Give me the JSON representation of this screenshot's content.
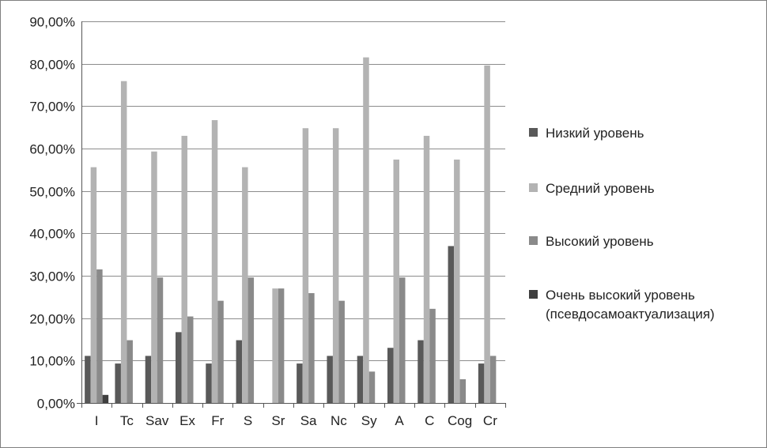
{
  "chart_data": {
    "type": "bar",
    "title": "",
    "xlabel": "",
    "ylabel": "",
    "ylim": [
      0,
      90
    ],
    "y_tick_step": 10,
    "y_tick_labels": [
      "0,00%",
      "10,00%",
      "20,00%",
      "30,00%",
      "40,00%",
      "50,00%",
      "60,00%",
      "70,00%",
      "80,00%",
      "90,00%"
    ],
    "grid": "horizontal",
    "legend_position": "right",
    "categories": [
      "I",
      "Tc",
      "Sav",
      "Ex",
      "Fr",
      "S",
      "Sr",
      "Sa",
      "Nc",
      "Sy",
      "A",
      "C",
      "Cog",
      "Cr"
    ],
    "series": [
      {
        "name": "Низкий уровень",
        "color": "#595959",
        "values": [
          11.1,
          9.3,
          11.1,
          16.7,
          9.3,
          14.8,
          0,
          9.3,
          11.1,
          11.1,
          13.0,
          14.8,
          37.0,
          9.3
        ]
      },
      {
        "name": "Средний уровень",
        "color": "#b3b3b3",
        "values": [
          55.6,
          75.9,
          59.3,
          63.0,
          66.7,
          55.6,
          27.0,
          64.8,
          64.8,
          81.5,
          57.4,
          63.0,
          57.4,
          79.6
        ]
      },
      {
        "name": "Высокий уровень",
        "color": "#8a8a8a",
        "values": [
          31.5,
          14.8,
          29.6,
          20.4,
          24.1,
          29.6,
          27.0,
          25.9,
          24.1,
          7.4,
          29.6,
          22.2,
          5.6,
          11.1
        ]
      },
      {
        "name": "Очень высокий уровень",
        "name_line2": "(псевдосамоактуализация)",
        "color": "#3f3f3f",
        "values": [
          1.9,
          0,
          0,
          0,
          0,
          0,
          0,
          0,
          0,
          0,
          0,
          0,
          0,
          0
        ]
      }
    ]
  }
}
